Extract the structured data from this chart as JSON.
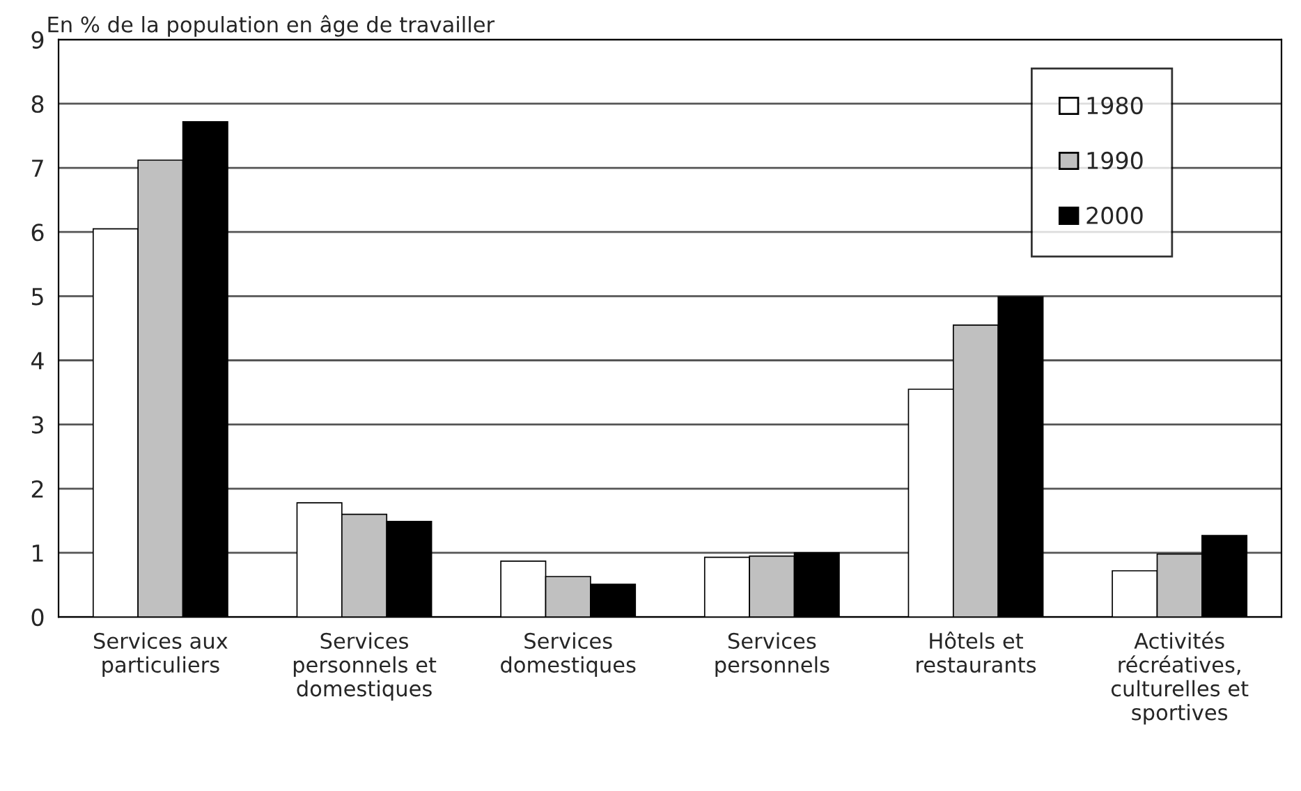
{
  "chart_data": {
    "type": "bar",
    "ylabel": "En % de la population en âge de travailler",
    "categories": [
      "Services aux\nparticuliers",
      "Services\npersonnels et\ndomestiques",
      "Services\ndomestiques",
      "Services\npersonnels",
      "Hôtels et\nrestaurants",
      "Activités\nrécréatives,\nculturelles et\nsportives"
    ],
    "series": [
      {
        "name": "1980",
        "color": "#ffffff",
        "values": [
          6.05,
          1.78,
          0.87,
          0.93,
          3.55,
          0.72
        ]
      },
      {
        "name": "1990",
        "color": "#c0c0c0",
        "values": [
          7.12,
          1.6,
          0.63,
          0.95,
          4.55,
          0.98
        ]
      },
      {
        "name": "2000",
        "color": "#000000",
        "values": [
          7.72,
          1.49,
          0.51,
          1.0,
          4.99,
          1.27
        ]
      }
    ],
    "ylim": [
      0,
      9
    ],
    "yticks": [
      0,
      1,
      2,
      3,
      4,
      5,
      6,
      7,
      8,
      9
    ],
    "grid": "y",
    "legend": "top right"
  }
}
